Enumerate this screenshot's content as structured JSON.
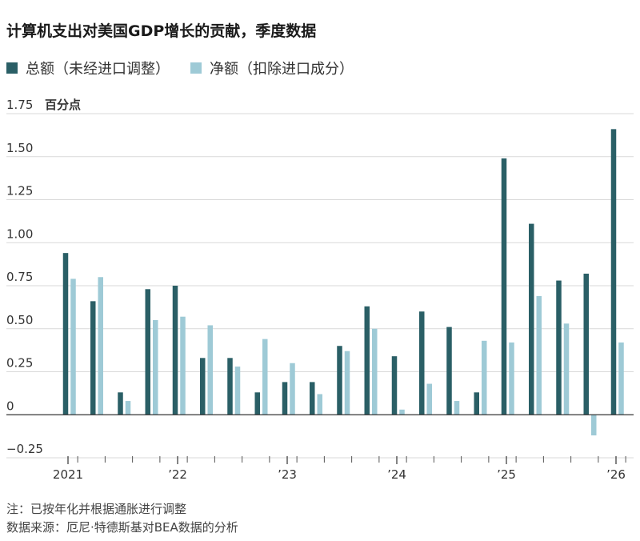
{
  "title": "计算机支出对美国GDP增长的贡献，季度数据",
  "legend": [
    {
      "label": "总额（未经进口调整）",
      "color": "#2a5f66"
    },
    {
      "label": "净额（扣除进口成分）",
      "color": "#9ecad6"
    }
  ],
  "footnote": "注：已按年化并根据通胀进行调整",
  "source": "数据来源：厄尼·特德斯基对BEA数据的分析",
  "chart_data": {
    "type": "bar",
    "ylabel": "百分点",
    "ylim": [
      -0.25,
      1.75
    ],
    "yticks": [
      {
        "value": 1.75,
        "label": "1.75"
      },
      {
        "value": 1.5,
        "label": "1.50"
      },
      {
        "value": 1.25,
        "label": "1.25"
      },
      {
        "value": 1.0,
        "label": "1.00"
      },
      {
        "value": 0.75,
        "label": "0.75"
      },
      {
        "value": 0.5,
        "label": "0.50"
      },
      {
        "value": 0.25,
        "label": "0.25"
      },
      {
        "value": 0,
        "label": "0"
      },
      {
        "value": -0.25,
        "label": "−0.25"
      }
    ],
    "categories": [
      "2021 Q1",
      "2021 Q2",
      "2021 Q3",
      "2021 Q4",
      "2022 Q1",
      "2022 Q2",
      "2022 Q3",
      "2022 Q4",
      "2023 Q1",
      "2023 Q2",
      "2023 Q3",
      "2023 Q4",
      "2024 Q1",
      "2024 Q2",
      "2024 Q3",
      "2024 Q4",
      "2025 Q1",
      "2025 Q2",
      "2025 Q3",
      "2025 Q4",
      "2026 Q1"
    ],
    "xtick_labels": [
      {
        "index": 0,
        "label": "2021"
      },
      {
        "index": 4,
        "label": "’22"
      },
      {
        "index": 8,
        "label": "’23"
      },
      {
        "index": 12,
        "label": "’24"
      },
      {
        "index": 16,
        "label": "’25"
      },
      {
        "index": 20,
        "label": "’26"
      }
    ],
    "series": [
      {
        "name": "总额（未经进口调整）",
        "color": "#2a5f66",
        "values": [
          0.94,
          0.66,
          0.13,
          0.73,
          0.75,
          0.33,
          0.33,
          0.13,
          0.19,
          0.19,
          0.4,
          0.63,
          0.34,
          0.6,
          0.51,
          0.13,
          1.49,
          1.11,
          0.78,
          0.82,
          1.66
        ]
      },
      {
        "name": "净额（扣除进口成分）",
        "color": "#9ecad6",
        "values": [
          0.79,
          0.8,
          0.08,
          0.55,
          0.57,
          0.52,
          0.28,
          0.44,
          0.3,
          0.12,
          0.37,
          0.5,
          0.03,
          0.18,
          0.08,
          0.43,
          0.42,
          0.69,
          0.53,
          -0.12,
          0.42
        ]
      }
    ],
    "grid": true
  }
}
